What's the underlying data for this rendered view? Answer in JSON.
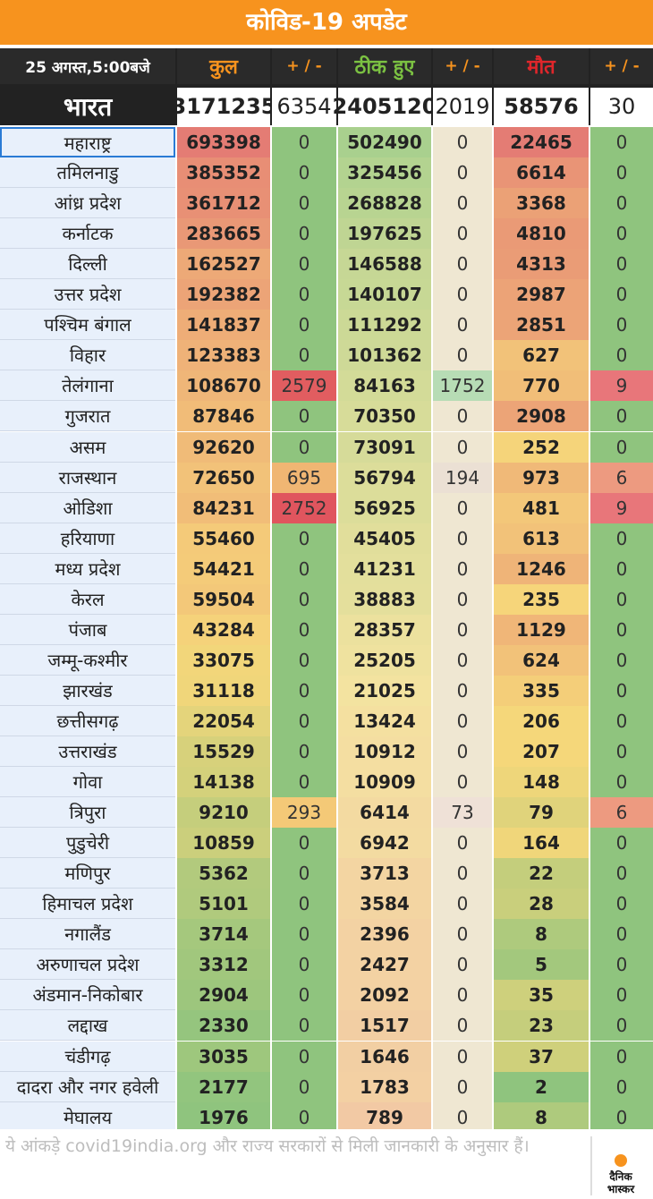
{
  "title": "कोविड-19 अपडेट",
  "header": {
    "date": "25 अगस्त,5:00बजे",
    "total_label": "कुल",
    "change_label": "+ / -",
    "recovered_label": "ठीक हुए",
    "deaths_label": "मौत"
  },
  "header_colors": {
    "total": "#f7931e",
    "recovered": "#7bc142",
    "deaths": "#e0262b",
    "change": "#f7931e"
  },
  "national": {
    "name": "भारत",
    "total": "3171235",
    "total_change": "6354",
    "recovered": "2405120",
    "recovered_change": "2019",
    "deaths": "58576",
    "deaths_change": "30"
  },
  "states": [
    {
      "name": "महाराष्ट्र",
      "total": "693398",
      "tc": "0",
      "rec": "502490",
      "rc": "0",
      "d": "22465",
      "dc": "0"
    },
    {
      "name": "तमिलनाडु",
      "total": "385352",
      "tc": "0",
      "rec": "325456",
      "rc": "0",
      "d": "6614",
      "dc": "0"
    },
    {
      "name": "आंध्र प्रदेश",
      "total": "361712",
      "tc": "0",
      "rec": "268828",
      "rc": "0",
      "d": "3368",
      "dc": "0"
    },
    {
      "name": "कर्नाटक",
      "total": "283665",
      "tc": "0",
      "rec": "197625",
      "rc": "0",
      "d": "4810",
      "dc": "0"
    },
    {
      "name": "दिल्ली",
      "total": "162527",
      "tc": "0",
      "rec": "146588",
      "rc": "0",
      "d": "4313",
      "dc": "0"
    },
    {
      "name": "उत्तर प्रदेश",
      "total": "192382",
      "tc": "0",
      "rec": "140107",
      "rc": "0",
      "d": "2987",
      "dc": "0"
    },
    {
      "name": "पश्चिम बंगाल",
      "total": "141837",
      "tc": "0",
      "rec": "111292",
      "rc": "0",
      "d": "2851",
      "dc": "0"
    },
    {
      "name": "विहार",
      "total": "123383",
      "tc": "0",
      "rec": "101362",
      "rc": "0",
      "d": "627",
      "dc": "0"
    },
    {
      "name": "तेलंगाना",
      "total": "108670",
      "tc": "2579",
      "rec": "84163",
      "rc": "1752",
      "d": "770",
      "dc": "9"
    },
    {
      "name": "गुजरात",
      "total": "87846",
      "tc": "0",
      "rec": "70350",
      "rc": "0",
      "d": "2908",
      "dc": "0"
    },
    {
      "name": "असम",
      "total": "92620",
      "tc": "0",
      "rec": "73091",
      "rc": "0",
      "d": "252",
      "dc": "0"
    },
    {
      "name": "राजस्थान",
      "total": "72650",
      "tc": "695",
      "rec": "56794",
      "rc": "194",
      "d": "973",
      "dc": "6"
    },
    {
      "name": "ओडिशा",
      "total": "84231",
      "tc": "2752",
      "rec": "56925",
      "rc": "0",
      "d": "481",
      "dc": "9"
    },
    {
      "name": "हरियाणा",
      "total": "55460",
      "tc": "0",
      "rec": "45405",
      "rc": "0",
      "d": "613",
      "dc": "0"
    },
    {
      "name": "मध्य प्रदेश",
      "total": "54421",
      "tc": "0",
      "rec": "41231",
      "rc": "0",
      "d": "1246",
      "dc": "0"
    },
    {
      "name": "केरल",
      "total": "59504",
      "tc": "0",
      "rec": "38883",
      "rc": "0",
      "d": "235",
      "dc": "0"
    },
    {
      "name": "पंजाब",
      "total": "43284",
      "tc": "0",
      "rec": "28357",
      "rc": "0",
      "d": "1129",
      "dc": "0"
    },
    {
      "name": "जम्मू-कश्मीर",
      "total": "33075",
      "tc": "0",
      "rec": "25205",
      "rc": "0",
      "d": "624",
      "dc": "0"
    },
    {
      "name": "झारखंड",
      "total": "31118",
      "tc": "0",
      "rec": "21025",
      "rc": "0",
      "d": "335",
      "dc": "0"
    },
    {
      "name": "छत्तीसगढ़",
      "total": "22054",
      "tc": "0",
      "rec": "13424",
      "rc": "0",
      "d": "206",
      "dc": "0"
    },
    {
      "name": "उत्तराखंड",
      "total": "15529",
      "tc": "0",
      "rec": "10912",
      "rc": "0",
      "d": "207",
      "dc": "0"
    },
    {
      "name": "गोवा",
      "total": "14138",
      "tc": "0",
      "rec": "10909",
      "rc": "0",
      "d": "148",
      "dc": "0"
    },
    {
      "name": "त्रिपुरा",
      "total": "9210",
      "tc": "293",
      "rec": "6414",
      "rc": "73",
      "d": "79",
      "dc": "6"
    },
    {
      "name": "पुडुचेरी",
      "total": "10859",
      "tc": "0",
      "rec": "6942",
      "rc": "0",
      "d": "164",
      "dc": "0"
    },
    {
      "name": "मणिपुर",
      "total": "5362",
      "tc": "0",
      "rec": "3713",
      "rc": "0",
      "d": "22",
      "dc": "0"
    },
    {
      "name": "हिमाचल प्रदेश",
      "total": "5101",
      "tc": "0",
      "rec": "3584",
      "rc": "0",
      "d": "28",
      "dc": "0"
    },
    {
      "name": "नगालैंड",
      "total": "3714",
      "tc": "0",
      "rec": "2396",
      "rc": "0",
      "d": "8",
      "dc": "0"
    },
    {
      "name": "अरुणाचल प्रदेश",
      "total": "3312",
      "tc": "0",
      "rec": "2427",
      "rc": "0",
      "d": "5",
      "dc": "0"
    },
    {
      "name": "अंडमान-निकोबार",
      "total": "2904",
      "tc": "0",
      "rec": "2092",
      "rc": "0",
      "d": "35",
      "dc": "0"
    },
    {
      "name": "लद्दाख",
      "total": "2330",
      "tc": "0",
      "rec": "1517",
      "rc": "0",
      "d": "23",
      "dc": "0"
    },
    {
      "name": "चंडीगढ़",
      "total": "3035",
      "tc": "0",
      "rec": "1646",
      "rc": "0",
      "d": "37",
      "dc": "0"
    },
    {
      "name": "दादरा और नगर हवेली",
      "total": "2177",
      "tc": "0",
      "rec": "1783",
      "rc": "0",
      "d": "2",
      "dc": "0"
    },
    {
      "name": "मेघालय",
      "total": "1976",
      "tc": "0",
      "rec": "789",
      "rc": "0",
      "d": "8",
      "dc": "0"
    }
  ],
  "footnote": "ये आंकड़े covid19india.org और राज्य सरकारों से मिली जानकारी के अनुसार हैं।",
  "logo": {
    "line1": "दैनिक",
    "line2": "भास्कर"
  }
}
